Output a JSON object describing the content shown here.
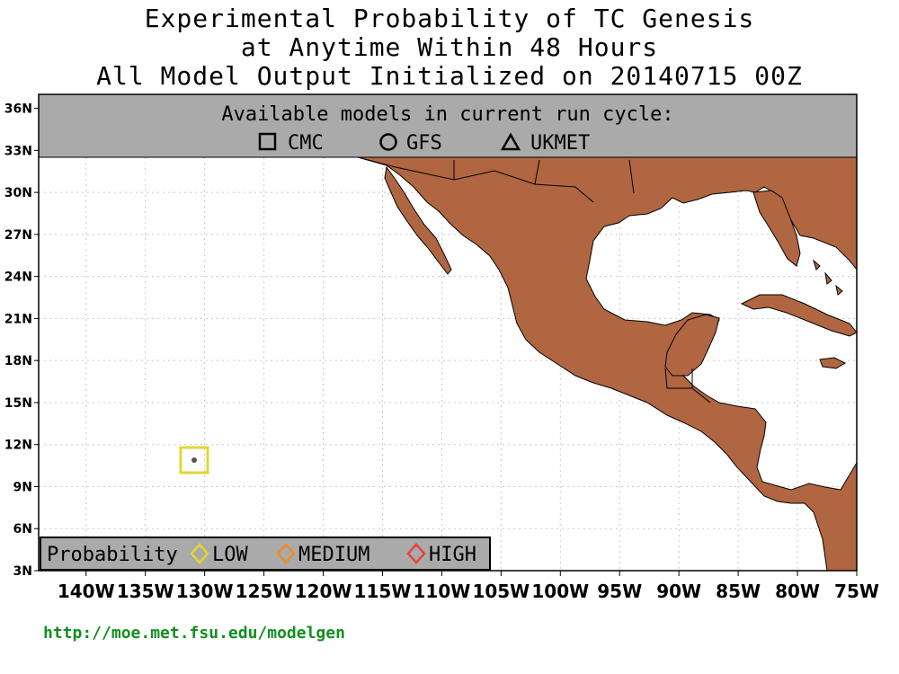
{
  "title": {
    "line1": "Experimental Probability of TC Genesis",
    "line2": "at Anytime Within 48 Hours",
    "line3": "All Model Output Initialized on 20140715 00Z"
  },
  "models_box": {
    "heading": "Available models in current run cycle:",
    "models": [
      {
        "label": "CMC",
        "icon": "square-icon"
      },
      {
        "label": "GFS",
        "icon": "circle-icon"
      },
      {
        "label": "UKMET",
        "icon": "triangle-icon"
      }
    ]
  },
  "probability_legend": {
    "label": "Probability",
    "levels": [
      {
        "label": "LOW",
        "color": "#e3d535"
      },
      {
        "label": "MEDIUM",
        "color": "#ef8a2a"
      },
      {
        "label": "HIGH",
        "color": "#e8433c"
      }
    ]
  },
  "map": {
    "lat_ticks": [
      "3N",
      "6N",
      "9N",
      "12N",
      "15N",
      "18N",
      "21N",
      "24N",
      "27N",
      "30N",
      "33N",
      "36N"
    ],
    "lon_ticks": [
      "140W",
      "135W",
      "130W",
      "125W",
      "120W",
      "115W",
      "110W",
      "105W",
      "100W",
      "95W",
      "90W",
      "85W",
      "80W",
      "75W"
    ],
    "lon_range": [
      -144,
      -75
    ],
    "lat_range": [
      3,
      37
    ],
    "land_color": "#b06640",
    "grid": true,
    "genesis_markers": [
      {
        "model": "CMC",
        "lon": -130.9,
        "lat": 11.0,
        "probability": "LOW"
      }
    ]
  },
  "footer_url": "http://moe.met.fsu.edu/modelgen"
}
